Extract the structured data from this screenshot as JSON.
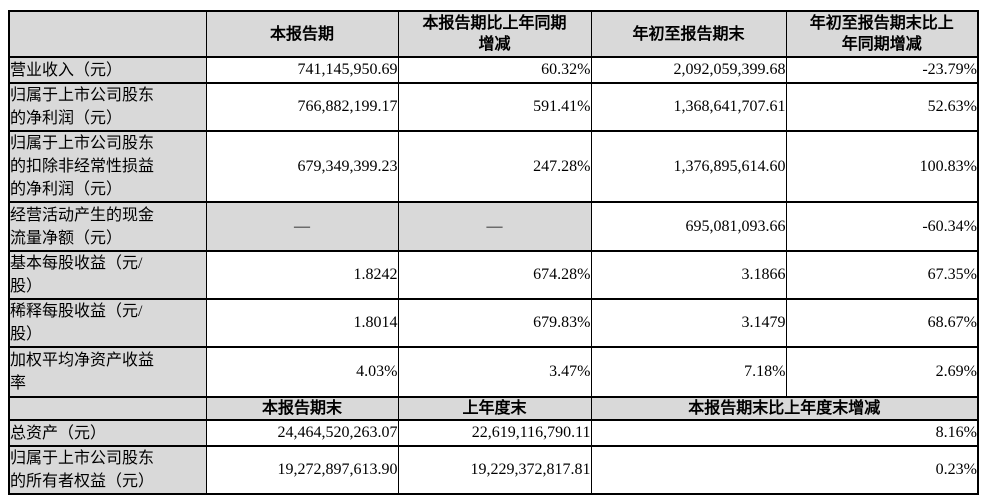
{
  "colors": {
    "header_bg": "#d9d9d9",
    "border": "#000000",
    "text": "#000000"
  },
  "table1": {
    "col_headers": [
      "",
      "本报告期",
      "本报告期比上年同期\n增减",
      "年初至报告期末",
      "年初至报告期末比上\n年同期增减"
    ],
    "rows": [
      {
        "label": "营业收入（元）",
        "values": [
          "741,145,950.69",
          "60.32%",
          "2,092,059,399.68",
          "-23.79%"
        ]
      },
      {
        "label": "归属于上市公司股东\n的净利润（元）",
        "values": [
          "766,882,199.17",
          "591.41%",
          "1,368,641,707.61",
          "52.63%"
        ]
      },
      {
        "label": "归属于上市公司股东\n的扣除非经常性损益\n的净利润（元）",
        "values": [
          "679,349,399.23",
          "247.28%",
          "1,376,895,614.60",
          "100.83%"
        ]
      },
      {
        "label": "经营活动产生的现金\n流量净额（元）",
        "values": [
          "—",
          "—",
          "695,081,093.66",
          "-60.34%"
        ]
      },
      {
        "label": "基本每股收益（元/\n股）",
        "values": [
          "1.8242",
          "674.28%",
          "3.1866",
          "67.35%"
        ]
      },
      {
        "label": "稀释每股收益（元/\n股）",
        "values": [
          "1.8014",
          "679.83%",
          "3.1479",
          "68.67%"
        ]
      },
      {
        "label": "加权平均净资产收益\n率",
        "values": [
          "4.03%",
          "3.47%",
          "7.18%",
          "2.69%"
        ]
      }
    ]
  },
  "table2": {
    "col_headers": [
      "",
      "本报告期末",
      "上年度末",
      "本报告期末比上年度末增减"
    ],
    "rows": [
      {
        "label": "总资产（元）",
        "values": [
          "24,464,520,263.07",
          "22,619,116,790.11",
          "8.16%"
        ]
      },
      {
        "label": "归属于上市公司股东\n的所有者权益（元）",
        "values": [
          "19,272,897,613.90",
          "19,229,372,817.81",
          "0.23%"
        ]
      }
    ]
  }
}
